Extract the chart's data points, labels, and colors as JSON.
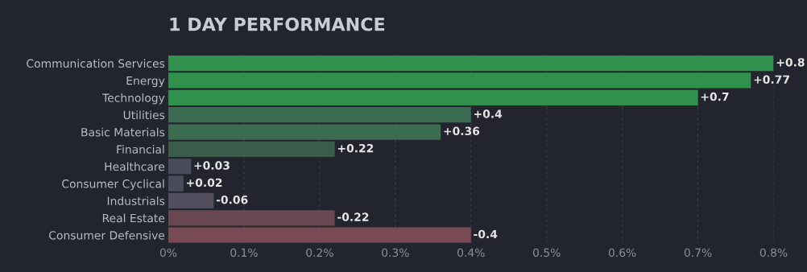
{
  "chart_data": {
    "type": "bar",
    "orientation": "horizontal",
    "title": "1 DAY PERFORMANCE",
    "categories": [
      "Communication Services",
      "Energy",
      "Technology",
      "Utilities",
      "Basic Materials",
      "Financial",
      "Healthcare",
      "Consumer Cyclical",
      "Industrials",
      "Real Estate",
      "Consumer Defensive"
    ],
    "values": [
      0.8,
      0.77,
      0.7,
      0.4,
      0.36,
      0.22,
      0.03,
      0.02,
      -0.06,
      -0.22,
      -0.4
    ],
    "base": [
      0,
      0,
      0,
      0,
      0,
      0,
      0,
      0,
      0.06,
      0.22,
      0.4
    ],
    "value_labels": [
      "+0.8",
      "+0.77",
      "+0.7",
      "+0.4",
      "+0.36",
      "+0.22",
      "+0.03",
      "+0.02",
      "-0.06",
      "-0.22",
      "-0.4"
    ],
    "colors": [
      "#30914d",
      "#30914d",
      "#30914d",
      "#3a6a4f",
      "#3b6c50",
      "#3a5c4a",
      "#484c5c",
      "#484c5c",
      "#524e5e",
      "#6a4853",
      "#784a53"
    ],
    "xlim": [
      0,
      0.8
    ],
    "xticks": [
      {
        "value": 0,
        "label": "0%"
      },
      {
        "value": 0.1,
        "label": "0.1%"
      },
      {
        "value": 0.2,
        "label": "0.2%"
      },
      {
        "value": 0.3,
        "label": "0.3%"
      },
      {
        "value": 0.4,
        "label": "0.4%"
      },
      {
        "value": 0.5,
        "label": "0.5%"
      },
      {
        "value": 0.6,
        "label": "0.6%"
      },
      {
        "value": 0.7,
        "label": "0.7%"
      },
      {
        "value": 0.8,
        "label": "0.8%"
      }
    ],
    "grid": "x",
    "legend": false
  }
}
